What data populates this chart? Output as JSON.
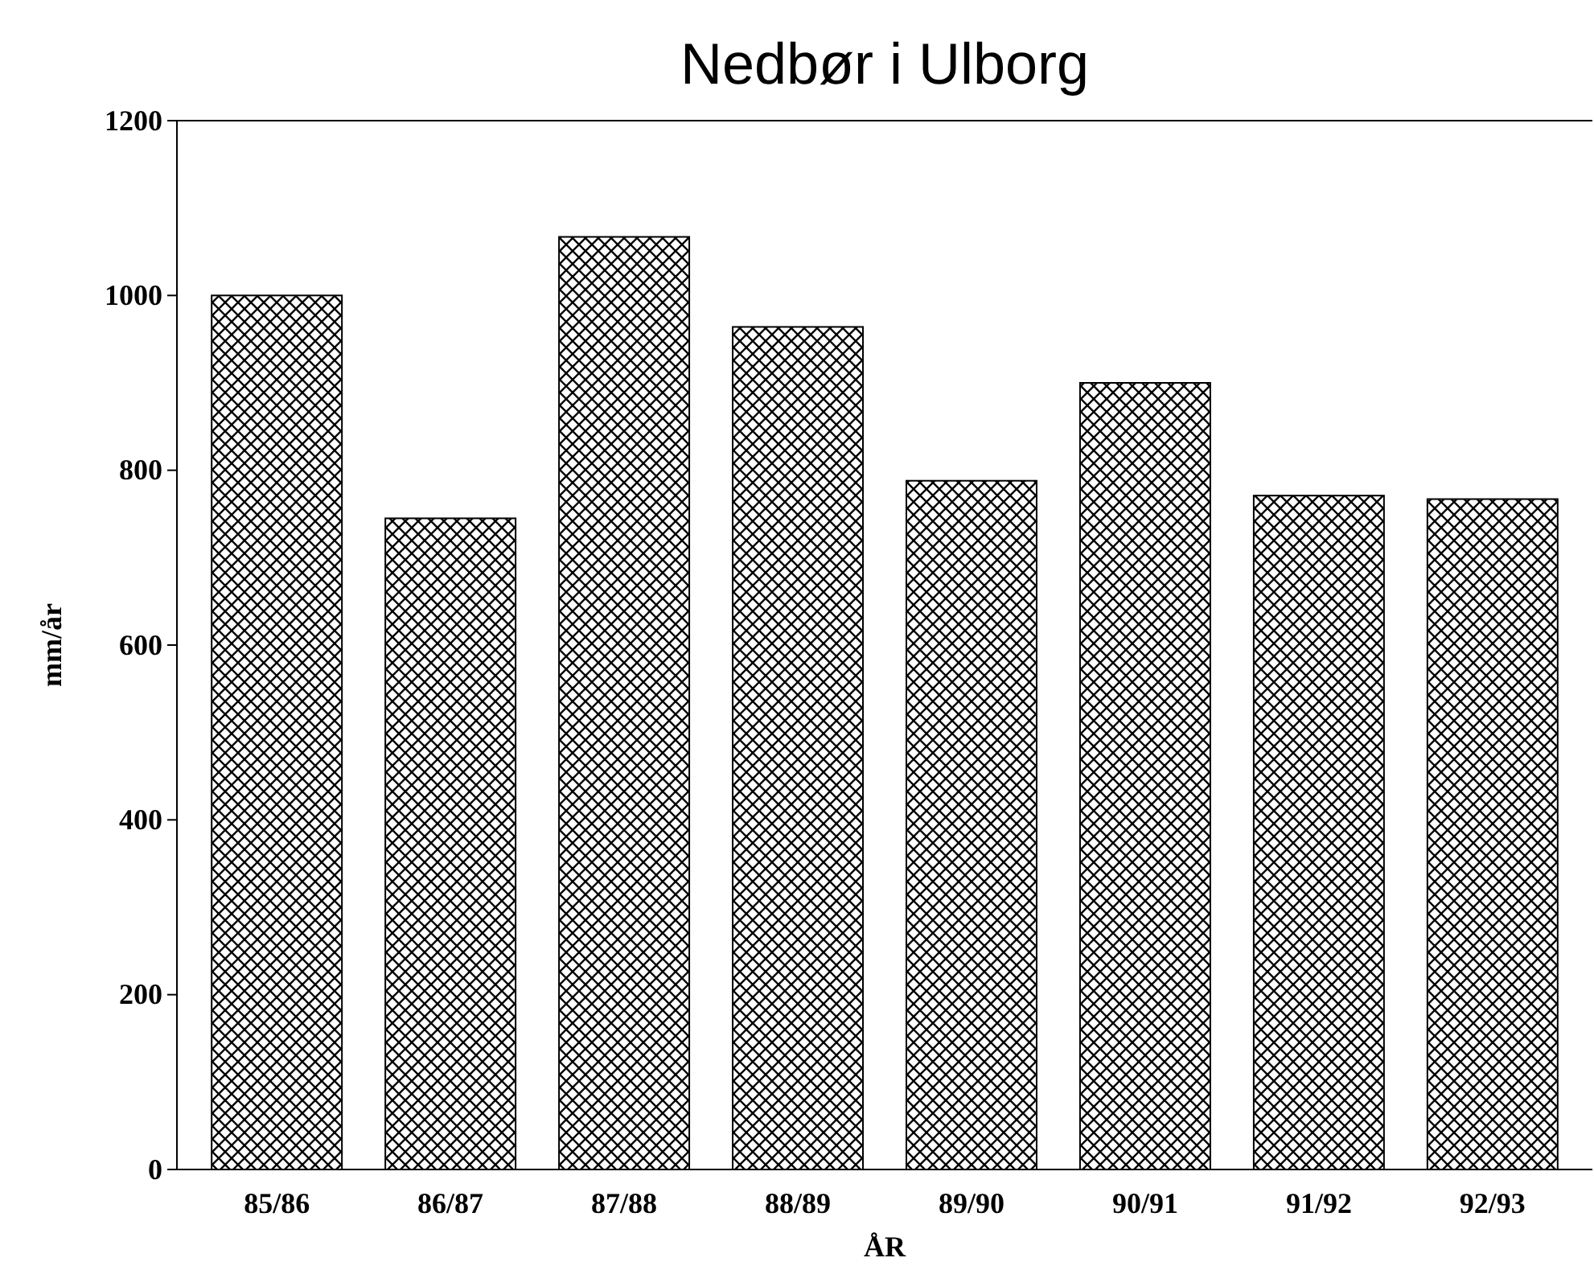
{
  "chart_data": {
    "type": "bar",
    "title": "Nedbør i Ulborg",
    "xlabel": "ÅR",
    "ylabel": "mm/år",
    "categories": [
      "85/86",
      "86/87",
      "87/88",
      "88/89",
      "89/90",
      "90/91",
      "91/92",
      "92/93"
    ],
    "values": [
      1000,
      745,
      1067,
      964,
      788,
      900,
      771,
      767
    ],
    "color": "#000000",
    "ylim": [
      0,
      1200
    ],
    "yticks": [
      0,
      200,
      400,
      600,
      800,
      1000,
      1200
    ],
    "grid": false
  }
}
